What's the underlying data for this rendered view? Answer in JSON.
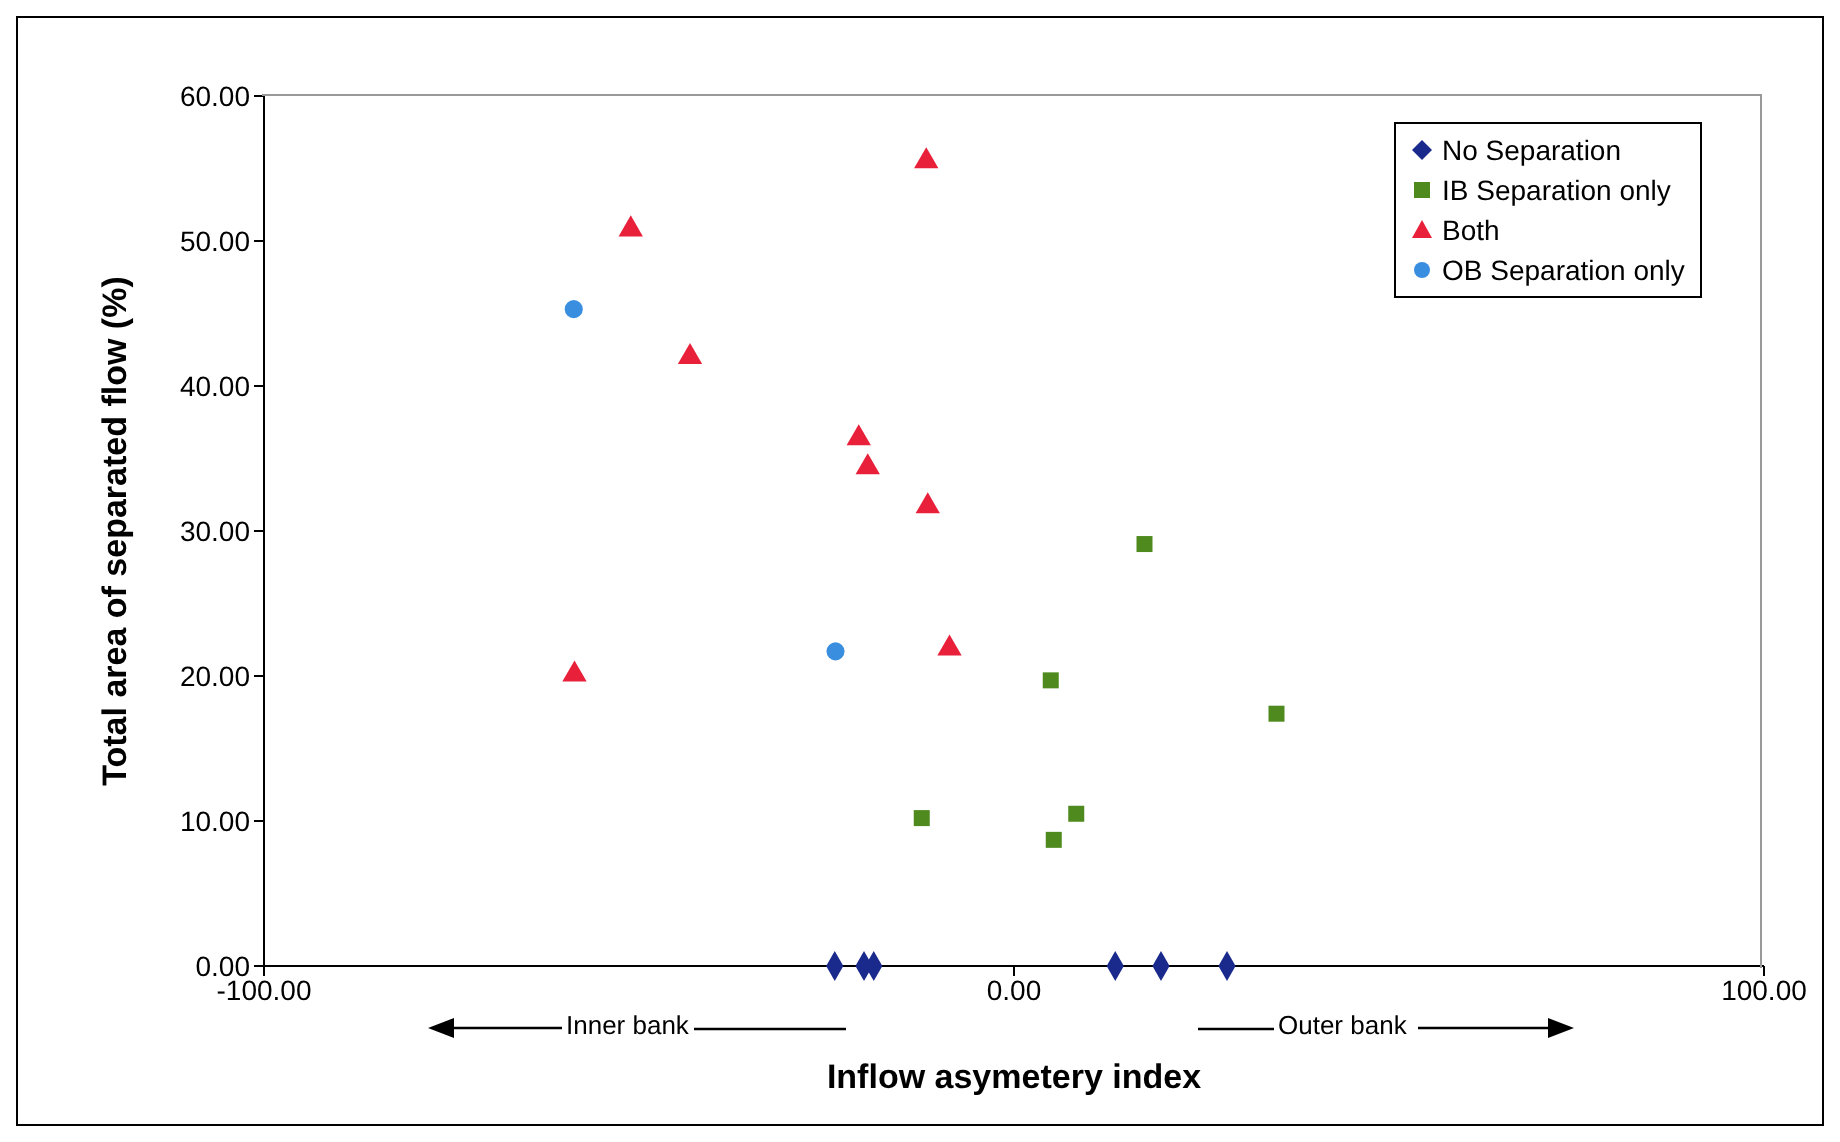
{
  "chart_data": {
    "type": "scatter",
    "xlabel": "Inflow asymetery index",
    "ylabel": "Total area of separated flow (%)",
    "xlim": [
      -100,
      100
    ],
    "xticks": [
      {
        "value": -100,
        "label": "-100.00"
      },
      {
        "value": 0,
        "label": "0.00"
      },
      {
        "value": 100,
        "label": "100.00"
      }
    ],
    "ylim": [
      0,
      60
    ],
    "yticks": [
      {
        "value": 0,
        "label": "0.00"
      },
      {
        "value": 10,
        "label": "10.00"
      },
      {
        "value": 20,
        "label": "20.00"
      },
      {
        "value": 30,
        "label": "30.00"
      },
      {
        "value": 40,
        "label": "40.00"
      },
      {
        "value": 50,
        "label": "50.00"
      },
      {
        "value": 60,
        "label": "60.00"
      }
    ],
    "legend": "top right",
    "annotations": [
      "Inner bank",
      "Outer bank"
    ],
    "series": [
      {
        "name": "No Separation",
        "color": "#1a2a8c",
        "marker": "diamond",
        "x": [
          -23.9,
          -20,
          -18.7,
          13.5,
          19.6,
          28.4
        ],
        "values": [
          0,
          0,
          0,
          0,
          0,
          0
        ]
      },
      {
        "name": "IB Separation only",
        "color": "#4e8a1e",
        "marker": "square",
        "x": [
          -12.3,
          17.4,
          4.9,
          5.3,
          8.3,
          35.0
        ],
        "values": [
          10.2,
          29.1,
          19.7,
          8.7,
          10.5,
          17.4
        ]
      },
      {
        "name": "Both",
        "color": "#e8203a",
        "marker": "triangle",
        "x": [
          -51.1,
          -11.7,
          -43.2,
          -20.7,
          -19.5,
          -11.5,
          -8.6,
          -58.6
        ],
        "values": [
          50.8,
          55.5,
          42.0,
          36.4,
          34.4,
          31.7,
          21.9,
          20.1
        ]
      },
      {
        "name": "OB Separation only",
        "color": "#3a8ee0",
        "marker": "circle",
        "x": [
          -58.7,
          -23.8
        ],
        "values": [
          45.3,
          21.7
        ]
      }
    ]
  }
}
